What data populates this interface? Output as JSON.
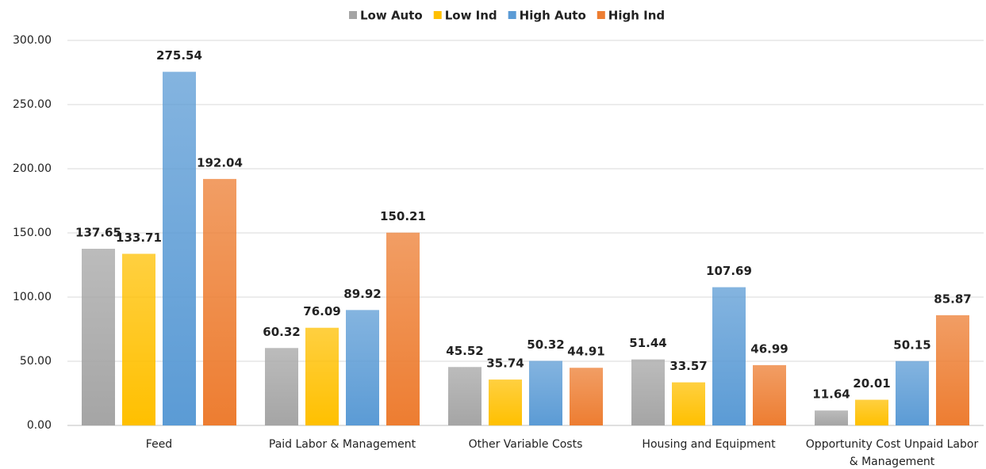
{
  "chart_data": {
    "type": "bar",
    "categories": [
      "Feed",
      "Paid Labor & Management",
      "Other Variable Costs",
      "Housing and Equipment",
      "Opportunity Cost Unpaid Labor & Management"
    ],
    "series": [
      {
        "name": "Low Auto",
        "color": "#a5a5a5",
        "values": [
          137.65,
          60.32,
          45.52,
          51.44,
          11.64
        ]
      },
      {
        "name": "Low Ind",
        "color": "#ffc000",
        "values": [
          133.71,
          76.09,
          35.74,
          33.57,
          20.01
        ]
      },
      {
        "name": "High Auto",
        "color": "#5b9bd5",
        "values": [
          275.54,
          89.92,
          50.32,
          107.69,
          50.15
        ]
      },
      {
        "name": "High Ind",
        "color": "#ed7d31",
        "values": [
          192.04,
          150.21,
          44.91,
          46.99,
          85.87
        ]
      }
    ],
    "ylim": [
      0,
      300
    ],
    "yticks": [
      {
        "value": 0,
        "label": "0.00"
      },
      {
        "value": 50,
        "label": "50.00"
      },
      {
        "value": 100,
        "label": "100.00"
      },
      {
        "value": 150,
        "label": "150.00"
      },
      {
        "value": 200,
        "label": "200.00"
      },
      {
        "value": 250,
        "label": "250.00"
      },
      {
        "value": 300,
        "label": "300.00"
      }
    ],
    "grid": true,
    "legend": "top"
  }
}
